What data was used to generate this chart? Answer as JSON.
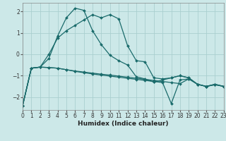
{
  "xlabel": "Humidex (Indice chaleur)",
  "background_color": "#cce8e8",
  "grid_color": "#aacfcf",
  "line_color": "#1a6b6b",
  "xlim": [
    0,
    23
  ],
  "ylim": [
    -2.6,
    2.4
  ],
  "xticks": [
    0,
    1,
    2,
    3,
    4,
    5,
    6,
    7,
    8,
    9,
    10,
    11,
    12,
    13,
    14,
    15,
    16,
    17,
    18,
    19,
    20,
    21,
    22,
    23
  ],
  "yticks": [
    -2,
    -1,
    0,
    1,
    2
  ],
  "series": [
    {
      "x": [
        0,
        1,
        2,
        3,
        4,
        5,
        6,
        7,
        8,
        9,
        10,
        11,
        12,
        13,
        14,
        15,
        16,
        17,
        18,
        19,
        20,
        21,
        22,
        23
      ],
      "y": [
        -2.4,
        -0.65,
        -0.6,
        -0.2,
        0.85,
        1.7,
        2.15,
        2.05,
        1.1,
        0.45,
        -0.05,
        -0.3,
        -0.5,
        -1.05,
        -1.15,
        -1.3,
        -1.2,
        -1.1,
        -1.0,
        -1.1,
        -1.4,
        -1.5,
        -1.4,
        -1.5
      ]
    },
    {
      "x": [
        0,
        1,
        2,
        3,
        4,
        5,
        6,
        7,
        8,
        9,
        10,
        11,
        12,
        13,
        14,
        15,
        16,
        17,
        18,
        19,
        20,
        21,
        22,
        23
      ],
      "y": [
        -2.4,
        -0.65,
        -0.6,
        0.0,
        0.75,
        1.1,
        1.35,
        1.6,
        1.85,
        1.7,
        1.85,
        1.65,
        0.4,
        -0.3,
        -0.35,
        -1.1,
        -1.15,
        -1.1,
        -1.0,
        -1.1,
        -1.4,
        -1.5,
        -1.4,
        -1.5
      ]
    },
    {
      "x": [
        0,
        1,
        2,
        3,
        4,
        5,
        6,
        7,
        8,
        9,
        10,
        11,
        12,
        13,
        14,
        15,
        16,
        17,
        18,
        19,
        20,
        21,
        22,
        23
      ],
      "y": [
        -2.4,
        -0.65,
        -0.6,
        -0.62,
        -0.65,
        -0.72,
        -0.78,
        -0.83,
        -0.88,
        -0.93,
        -0.97,
        -1.02,
        -1.07,
        -1.12,
        -1.17,
        -1.22,
        -1.27,
        -1.32,
        -1.37,
        -1.15,
        -1.4,
        -1.5,
        -1.42,
        -1.5
      ]
    },
    {
      "x": [
        0,
        1,
        2,
        3,
        4,
        5,
        6,
        7,
        8,
        9,
        10,
        11,
        12,
        13,
        14,
        15,
        16,
        17,
        18,
        19,
        20,
        21,
        22,
        23
      ],
      "y": [
        -2.4,
        -0.65,
        -0.6,
        -0.62,
        -0.65,
        -0.72,
        -0.8,
        -0.86,
        -0.92,
        -0.97,
        -1.02,
        -1.07,
        -1.12,
        -1.17,
        -1.22,
        -1.27,
        -1.32,
        -2.3,
        -1.2,
        -1.15,
        -1.4,
        -1.5,
        -1.42,
        -1.5
      ]
    }
  ]
}
